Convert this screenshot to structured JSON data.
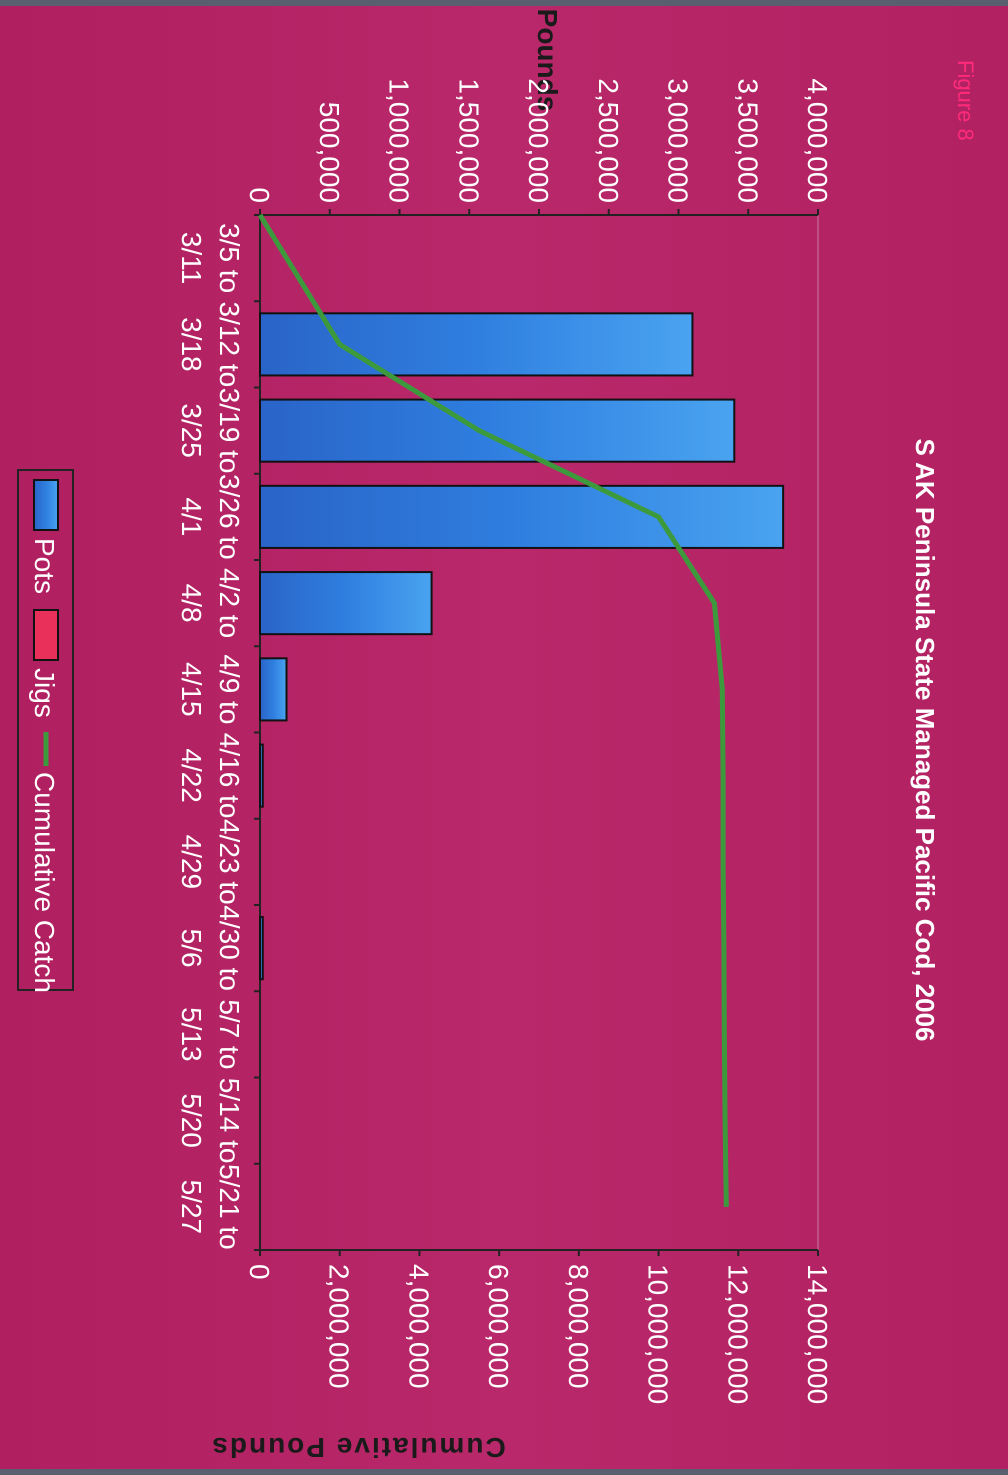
{
  "figure_label": "Figure 8",
  "chart_data": {
    "type": "bar",
    "title": "S AK Peninsula State Managed Pacific Cod, 2006",
    "categories": [
      [
        "3/5 to",
        "3/11"
      ],
      [
        "3/12 to",
        "3/18"
      ],
      [
        "3/19 to",
        "3/25"
      ],
      [
        "3/26 to",
        "4/1"
      ],
      [
        "4/2 to",
        "4/8"
      ],
      [
        "4/9 to",
        "4/15"
      ],
      [
        "4/16 to",
        "4/22"
      ],
      [
        "4/23 to",
        "4/29"
      ],
      [
        "4/30 to",
        "5/6"
      ],
      [
        "5/7 to",
        "5/13"
      ],
      [
        "5/14 to",
        "5/20"
      ],
      [
        "5/21 to",
        "5/27"
      ]
    ],
    "series": [
      {
        "name": "Pots",
        "type": "bar",
        "axis": "primary",
        "color": "#2f7fe0",
        "values": [
          0,
          3100000,
          3400000,
          3750000,
          1230000,
          190000,
          20000,
          0,
          20000,
          0,
          0,
          0
        ]
      },
      {
        "name": "Jigs",
        "type": "bar",
        "axis": "primary",
        "color": "#e8305a",
        "values": [
          0,
          0,
          0,
          0,
          0,
          0,
          0,
          0,
          0,
          0,
          0,
          0
        ]
      },
      {
        "name": "Cumulative Catch",
        "type": "line",
        "axis": "secondary",
        "color": "#3c9a3c",
        "values": [
          0,
          2000000,
          5500000,
          10000000,
          11400000,
          11600000,
          11620000,
          11620000,
          11640000,
          11650000,
          11670000,
          11700000
        ]
      }
    ],
    "y_primary": {
      "label": "Pounds",
      "lim": [
        0,
        4000000
      ],
      "ticks": [
        "0",
        "500,000",
        "1,000,000",
        "1,500,000",
        "2,000,000",
        "2,500,000",
        "3,000,000",
        "3,500,000",
        "4,000,000"
      ]
    },
    "y_secondary": {
      "label": "Cumulative Pounds",
      "lim": [
        0,
        14000000
      ],
      "ticks": [
        "0",
        "2,000,000",
        "4,000,000",
        "6,000,000",
        "8,000,000",
        "10,000,000",
        "12,000,000",
        "14,000,000"
      ]
    },
    "legend": {
      "position": "bottom",
      "entries": [
        "Pots",
        "Jigs",
        "Cumulative Catch"
      ]
    },
    "orientation": "rotated 90 degrees clockwise"
  }
}
